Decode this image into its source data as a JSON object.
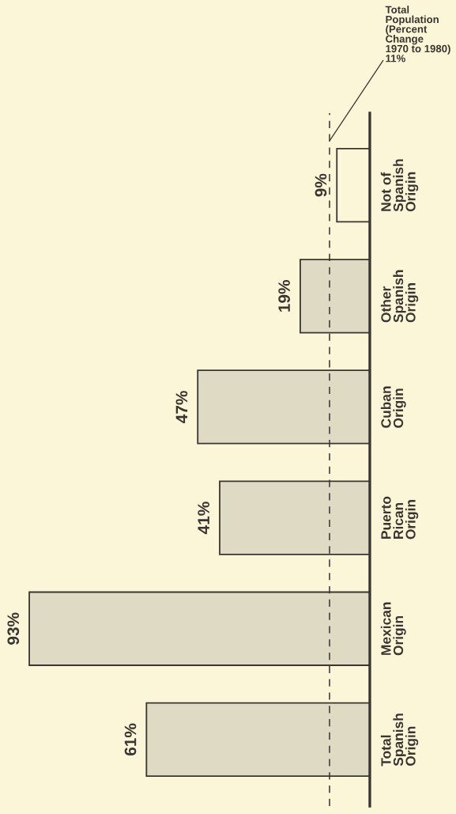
{
  "chart_data": {
    "type": "bar",
    "orientation": "horizontal",
    "categories": [
      "Not of\nSpanish\nOrigin",
      "Other\nSpanish\nOrigin",
      "Cuban\nOrigin",
      "Puerto\nRican\nOrigin",
      "Mexican\nOrigin",
      "Total\nSpanish\nOrigin"
    ],
    "values": [
      9,
      19,
      47,
      41,
      93,
      61
    ],
    "colors": [
      "#fbf6d8",
      "#dedac4",
      "#dedac4",
      "#dedac4",
      "#dedac4",
      "#dedac4"
    ],
    "value_labels": [
      "9%",
      "19%",
      "47%",
      "41%",
      "93%",
      "61%"
    ],
    "xlim": [
      101,
      0
    ],
    "ref_lines": [
      {
        "axis": "x",
        "value": 11,
        "label": "Total\nPopulation\n(Percent\nChange\n1970 to 1980)\n11%",
        "color": "#3a3530",
        "line_style": "dashed"
      }
    ],
    "grid": false,
    "tick_labels": "y"
  }
}
